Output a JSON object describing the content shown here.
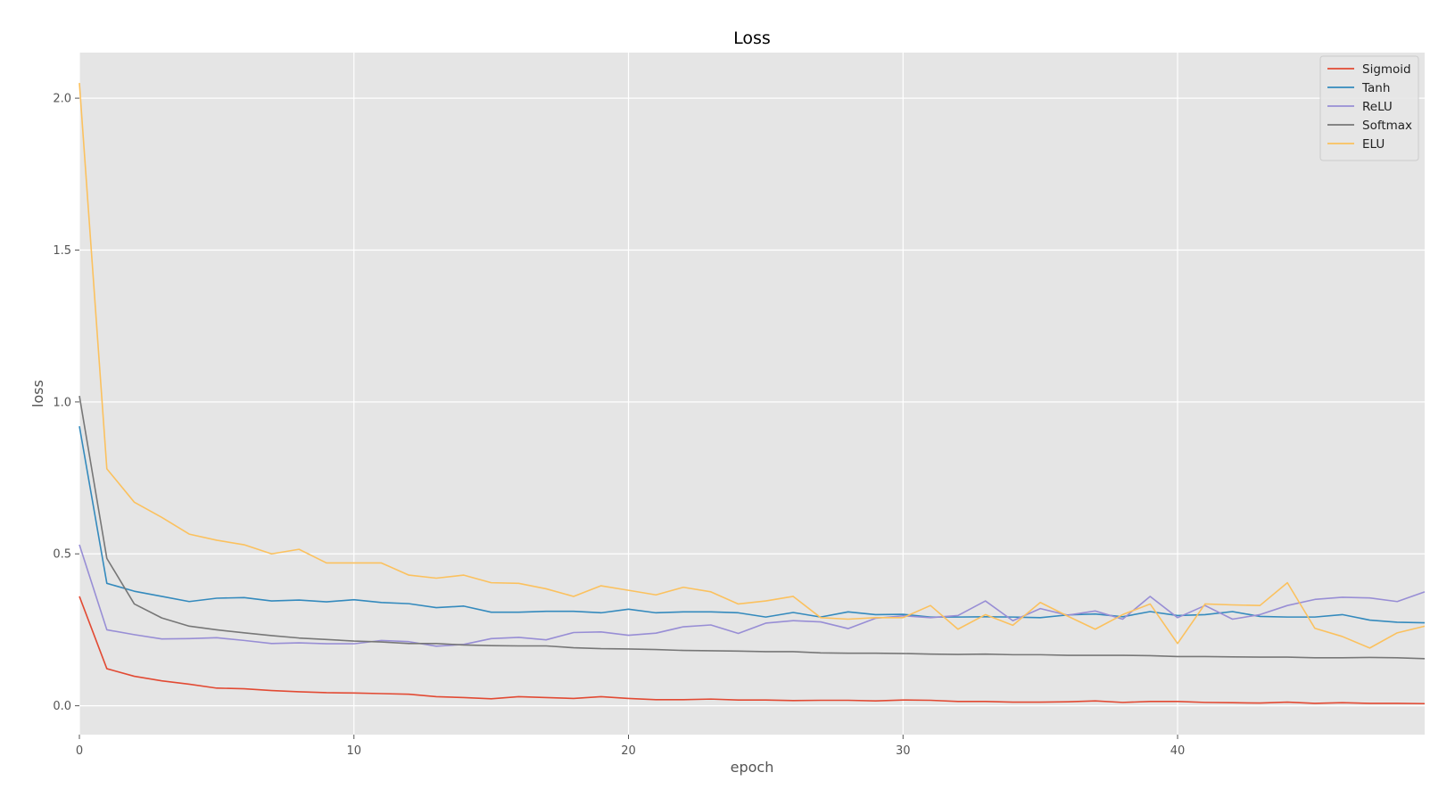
{
  "chart_data": {
    "type": "line",
    "title": "Loss",
    "xlabel": "epoch",
    "ylabel": "loss",
    "xlim": [
      0,
      49
    ],
    "ylim": [
      -0.095,
      2.15
    ],
    "x_ticks": [
      0,
      10,
      20,
      30,
      40
    ],
    "y_ticks": [
      0.0,
      0.5,
      1.0,
      1.5,
      2.0
    ],
    "y_tick_labels": [
      "0.0",
      "0.5",
      "1.0",
      "1.5",
      "2.0"
    ],
    "grid": true,
    "legend_position": "top-right",
    "x": [
      0,
      1,
      2,
      3,
      4,
      5,
      6,
      7,
      8,
      9,
      10,
      11,
      12,
      13,
      14,
      15,
      16,
      17,
      18,
      19,
      20,
      21,
      22,
      23,
      24,
      25,
      26,
      27,
      28,
      29,
      30,
      31,
      32,
      33,
      34,
      35,
      36,
      37,
      38,
      39,
      40,
      41,
      42,
      43,
      44,
      45,
      46,
      47,
      48,
      49
    ],
    "series": [
      {
        "name": "Sigmoid",
        "color": "#E24A33",
        "values": [
          0.36,
          0.122,
          0.097,
          0.082,
          0.071,
          0.058,
          0.056,
          0.05,
          0.046,
          0.043,
          0.042,
          0.04,
          0.038,
          0.03,
          0.027,
          0.023,
          0.03,
          0.027,
          0.024,
          0.03,
          0.024,
          0.02,
          0.02,
          0.022,
          0.019,
          0.019,
          0.017,
          0.018,
          0.018,
          0.016,
          0.019,
          0.018,
          0.014,
          0.014,
          0.012,
          0.012,
          0.013,
          0.016,
          0.011,
          0.014,
          0.014,
          0.011,
          0.01,
          0.009,
          0.012,
          0.008,
          0.01,
          0.008,
          0.008,
          0.007
        ]
      },
      {
        "name": "Tanh",
        "color": "#348ABD",
        "values": [
          0.92,
          0.403,
          0.377,
          0.36,
          0.343,
          0.354,
          0.356,
          0.345,
          0.348,
          0.342,
          0.349,
          0.34,
          0.336,
          0.323,
          0.328,
          0.308,
          0.308,
          0.311,
          0.311,
          0.306,
          0.318,
          0.306,
          0.309,
          0.309,
          0.306,
          0.292,
          0.307,
          0.292,
          0.309,
          0.3,
          0.301,
          0.292,
          0.292,
          0.293,
          0.292,
          0.29,
          0.299,
          0.302,
          0.293,
          0.31,
          0.297,
          0.3,
          0.31,
          0.294,
          0.292,
          0.292,
          0.3,
          0.282,
          0.275,
          0.273
        ]
      },
      {
        "name": "ReLU",
        "color": "#988ED5",
        "values": [
          0.53,
          0.25,
          0.234,
          0.22,
          0.221,
          0.224,
          0.215,
          0.205,
          0.207,
          0.204,
          0.204,
          0.215,
          0.211,
          0.196,
          0.202,
          0.221,
          0.225,
          0.217,
          0.241,
          0.243,
          0.232,
          0.239,
          0.26,
          0.266,
          0.238,
          0.272,
          0.28,
          0.276,
          0.254,
          0.288,
          0.296,
          0.29,
          0.297,
          0.345,
          0.28,
          0.32,
          0.298,
          0.312,
          0.285,
          0.36,
          0.29,
          0.33,
          0.285,
          0.3,
          0.33,
          0.35,
          0.357,
          0.355,
          0.343,
          0.375
        ]
      },
      {
        "name": "Softmax",
        "color": "#777777",
        "values": [
          1.02,
          0.485,
          0.335,
          0.289,
          0.262,
          0.25,
          0.24,
          0.231,
          0.223,
          0.218,
          0.213,
          0.21,
          0.205,
          0.205,
          0.2,
          0.198,
          0.197,
          0.197,
          0.191,
          0.188,
          0.187,
          0.185,
          0.182,
          0.181,
          0.18,
          0.178,
          0.178,
          0.174,
          0.173,
          0.173,
          0.172,
          0.17,
          0.169,
          0.17,
          0.168,
          0.168,
          0.166,
          0.166,
          0.166,
          0.165,
          0.162,
          0.162,
          0.161,
          0.16,
          0.16,
          0.158,
          0.158,
          0.159,
          0.158,
          0.155
        ]
      },
      {
        "name": "ELU",
        "color": "#FBC15E",
        "values": [
          2.05,
          0.78,
          0.67,
          0.62,
          0.565,
          0.545,
          0.53,
          0.5,
          0.515,
          0.47,
          0.47,
          0.47,
          0.43,
          0.42,
          0.43,
          0.405,
          0.403,
          0.385,
          0.36,
          0.395,
          0.38,
          0.365,
          0.39,
          0.375,
          0.335,
          0.345,
          0.36,
          0.29,
          0.285,
          0.29,
          0.29,
          0.33,
          0.252,
          0.3,
          0.265,
          0.34,
          0.295,
          0.252,
          0.3,
          0.335,
          0.205,
          0.335,
          0.332,
          0.33,
          0.405,
          0.255,
          0.228,
          0.19,
          0.24,
          0.262
        ]
      }
    ]
  }
}
